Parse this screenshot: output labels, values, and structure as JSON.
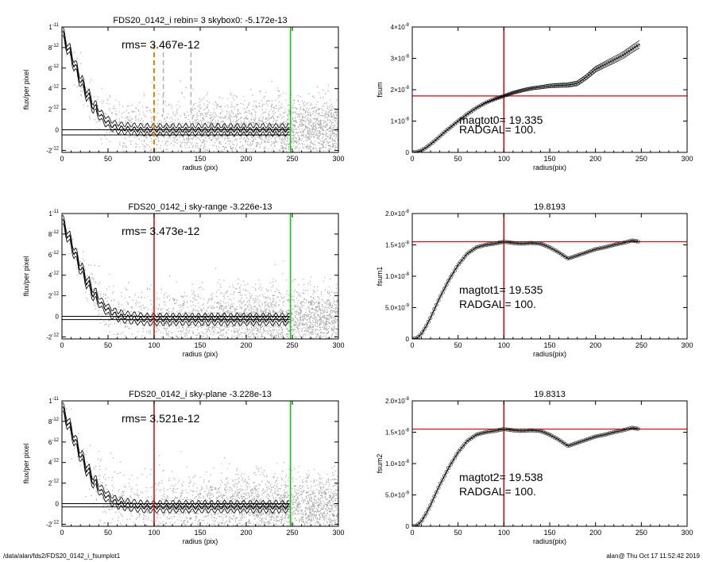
{
  "footer": {
    "left": "/data/alan/fds2/FDS20_0142_i_fsumplot1",
    "right": "alan@  Thu Oct 17 11:52:42 2019"
  },
  "colors": {
    "vline_mid": "#e00000",
    "vline_mid_top": "#f08000",
    "vline_edge": "#00cc00",
    "hline": "#cc0000",
    "scatter": "#a8a8a8",
    "profile": "#000000"
  },
  "chart_data": [
    {
      "type": "scatter",
      "panel": "left-1",
      "title": "FDS20_0142_i rebin= 3    skybox0: -5.172e-13",
      "annotation": "rms= 3.467e-12",
      "xlabel": "radius (pix)",
      "ylabel": "flux/per pixel",
      "xlim": [
        0,
        300
      ],
      "ylim": [
        -2.2e-12,
        1e-11
      ],
      "xticks": [
        "0",
        "50",
        "100",
        "150",
        "200",
        "250",
        "300"
      ],
      "yticks": [
        {
          "v": -2e-12,
          "m": "-2",
          "e": "-12"
        },
        {
          "v": 0,
          "m": "0",
          "e": ""
        },
        {
          "v": 2e-12,
          "m": "2",
          "e": "-12"
        },
        {
          "v": 4e-12,
          "m": "4",
          "e": "-12"
        },
        {
          "v": 6e-12,
          "m": "6",
          "e": "-12"
        },
        {
          "v": 8e-12,
          "m": "8",
          "e": "-12"
        },
        {
          "v": 1e-11,
          "m": "1",
          "e": "-11"
        }
      ],
      "vlines": [
        {
          "x": 100,
          "style": "dashed-orange"
        },
        {
          "x": 110,
          "style": "dashed-gray"
        },
        {
          "x": 140,
          "style": "dashed-gray"
        },
        {
          "x": 248,
          "style": "green"
        }
      ],
      "hlines": [
        0,
        -5e-13
      ],
      "profile_x": [
        0,
        5,
        10,
        15,
        20,
        25,
        30,
        35,
        40,
        45,
        50,
        55,
        60,
        70,
        80,
        90,
        100,
        120,
        140,
        160,
        180,
        200,
        220,
        248
      ],
      "profile_y": [
        9.5e-12,
        8.3e-12,
        7.2e-12,
        6e-12,
        4.9e-12,
        3.9e-12,
        3e-12,
        2.2e-12,
        1.6e-12,
        1.1e-12,
        7e-13,
        4e-13,
        2e-13,
        1e-13,
        5e-14,
        0,
        0,
        0,
        0,
        0,
        0,
        0,
        0,
        0
      ]
    },
    {
      "type": "line",
      "panel": "right-1",
      "title": "",
      "xlabel": "radius(pix)",
      "ylabel": "fsum",
      "xlim": [
        0,
        300
      ],
      "ylim": [
        0,
        4e-08
      ],
      "xticks": [
        "0",
        "50",
        "100",
        "150",
        "200",
        "250",
        "300"
      ],
      "yticks": [
        {
          "v": 0,
          "m": "0",
          "e": ""
        },
        {
          "v": 1e-08,
          "m": "1×10",
          "e": "-8"
        },
        {
          "v": 2e-08,
          "m": "2×10",
          "e": "-8"
        },
        {
          "v": 3e-08,
          "m": "3×10",
          "e": "-8"
        },
        {
          "v": 4e-08,
          "m": "4×10",
          "e": "-8"
        }
      ],
      "vline_x": 100,
      "hline_y": 1.8e-08,
      "annotations": [
        "magtot0=  19.335",
        "RADGAL=    100."
      ],
      "x": [
        0,
        5,
        10,
        15,
        20,
        25,
        30,
        35,
        40,
        50,
        60,
        70,
        80,
        90,
        100,
        110,
        120,
        130,
        140,
        150,
        160,
        170,
        180,
        190,
        200,
        210,
        220,
        230,
        240,
        248
      ],
      "y": [
        0,
        1e-10,
        6e-10,
        1.5e-09,
        2.6e-09,
        3.8e-09,
        5.1e-09,
        6.4e-09,
        7.6e-09,
        1e-08,
        1.22e-08,
        1.42e-08,
        1.58e-08,
        1.7e-08,
        1.8e-08,
        1.9e-08,
        1.98e-08,
        2.04e-08,
        2.08e-08,
        2.12e-08,
        2.14e-08,
        2.15e-08,
        2.2e-08,
        2.4e-08,
        2.65e-08,
        2.8e-08,
        2.95e-08,
        3.1e-08,
        3.3e-08,
        3.45e-08
      ]
    },
    {
      "type": "scatter",
      "panel": "left-2",
      "title": "FDS20_0142_i sky-range -3.226e-13",
      "annotation": "rms= 3.473e-12",
      "xlabel": "radius (pix)",
      "ylabel": "flux/per pixel",
      "xlim": [
        0,
        300
      ],
      "ylim": [
        -2.2e-12,
        1e-11
      ],
      "xticks": [
        "0",
        "50",
        "100",
        "150",
        "200",
        "250",
        "300"
      ],
      "yticks": [
        {
          "v": -2e-12,
          "m": "-2",
          "e": "-12"
        },
        {
          "v": 0,
          "m": "0",
          "e": ""
        },
        {
          "v": 2e-12,
          "m": "2",
          "e": "-12"
        },
        {
          "v": 4e-12,
          "m": "4",
          "e": "-12"
        },
        {
          "v": 6e-12,
          "m": "6",
          "e": "-12"
        },
        {
          "v": 8e-12,
          "m": "8",
          "e": "-12"
        },
        {
          "v": 1e-11,
          "m": "1",
          "e": "-11"
        }
      ],
      "vlines": [
        {
          "x": 100,
          "style": "red"
        },
        {
          "x": 248,
          "style": "green"
        }
      ],
      "hlines": [
        0,
        -3.2e-13
      ],
      "profile_x": [
        0,
        5,
        10,
        15,
        20,
        25,
        30,
        35,
        40,
        45,
        50,
        55,
        60,
        70,
        80,
        90,
        100,
        120,
        140,
        160,
        180,
        200,
        220,
        248
      ],
      "profile_y": [
        9.3e-12,
        8.2e-12,
        7.1e-12,
        5.9e-12,
        4.8e-12,
        3.8e-12,
        2.9e-12,
        2.1e-12,
        1.5e-12,
        1e-12,
        6e-13,
        3e-13,
        1e-13,
        -1e-13,
        -2e-13,
        -3e-13,
        -3e-13,
        -3e-13,
        -3e-13,
        -3e-13,
        -3e-13,
        -3e-13,
        -3e-13,
        -3e-13
      ]
    },
    {
      "type": "line",
      "panel": "right-2",
      "title": "19.8193",
      "xlabel": "radius(pix)",
      "ylabel": "fsum1",
      "xlim": [
        0,
        300
      ],
      "ylim": [
        0,
        2e-08
      ],
      "xticks": [
        "0",
        "50",
        "100",
        "150",
        "200",
        "250",
        "300"
      ],
      "yticks": [
        {
          "v": 0,
          "m": "0",
          "e": ""
        },
        {
          "v": 5e-09,
          "m": "5.0×10",
          "e": "-9"
        },
        {
          "v": 1e-08,
          "m": "1.0×10",
          "e": "-8"
        },
        {
          "v": 1.5e-08,
          "m": "1.5×10",
          "e": "-8"
        },
        {
          "v": 2e-08,
          "m": "2.0×10",
          "e": "-8"
        }
      ],
      "vline_x": 100,
      "hline_y": 1.55e-08,
      "annotations": [
        "magtot1=  19.535",
        "RADGAL=    100."
      ],
      "x": [
        0,
        5,
        10,
        15,
        20,
        25,
        30,
        35,
        40,
        50,
        60,
        70,
        80,
        90,
        100,
        110,
        120,
        130,
        140,
        150,
        160,
        170,
        180,
        190,
        200,
        210,
        220,
        230,
        240,
        248
      ],
      "y": [
        0,
        1e-10,
        8e-10,
        2e-09,
        3.4e-09,
        5e-09,
        6.6e-09,
        8e-09,
        9.4e-09,
        1.18e-08,
        1.36e-08,
        1.46e-08,
        1.5e-08,
        1.52e-08,
        1.55e-08,
        1.53e-08,
        1.52e-08,
        1.53e-08,
        1.52e-08,
        1.46e-08,
        1.38e-08,
        1.28e-08,
        1.33e-08,
        1.38e-08,
        1.43e-08,
        1.46e-08,
        1.5e-08,
        1.53e-08,
        1.57e-08,
        1.55e-08
      ]
    },
    {
      "type": "scatter",
      "panel": "left-3",
      "title": "FDS20_0142_i sky-plane -3.228e-13",
      "annotation": "rms= 3.521e-12",
      "xlabel": "radius (pix)",
      "ylabel": "flux/per pixel",
      "xlim": [
        0,
        300
      ],
      "ylim": [
        -2.2e-12,
        1e-11
      ],
      "xticks": [
        "0",
        "50",
        "100",
        "150",
        "200",
        "250",
        "300"
      ],
      "yticks": [
        {
          "v": -2e-12,
          "m": "-2",
          "e": "-12"
        },
        {
          "v": 0,
          "m": "0",
          "e": ""
        },
        {
          "v": 2e-12,
          "m": "2",
          "e": "-12"
        },
        {
          "v": 4e-12,
          "m": "4",
          "e": "-12"
        },
        {
          "v": 6e-12,
          "m": "6",
          "e": "-12"
        },
        {
          "v": 8e-12,
          "m": "8",
          "e": "-12"
        },
        {
          "v": 1e-11,
          "m": "1",
          "e": "-11"
        }
      ],
      "vlines": [
        {
          "x": 100,
          "style": "red"
        },
        {
          "x": 248,
          "style": "green"
        }
      ],
      "hlines": [
        0,
        -3.2e-13
      ],
      "profile_x": [
        0,
        5,
        10,
        15,
        20,
        25,
        30,
        35,
        40,
        45,
        50,
        55,
        60,
        70,
        80,
        90,
        100,
        120,
        140,
        160,
        180,
        200,
        220,
        248
      ],
      "profile_y": [
        9.3e-12,
        8.2e-12,
        7.1e-12,
        5.9e-12,
        4.8e-12,
        3.8e-12,
        2.9e-12,
        2.1e-12,
        1.5e-12,
        1e-12,
        6e-13,
        3e-13,
        1e-13,
        -1e-13,
        -2e-13,
        -3e-13,
        -3e-13,
        -3e-13,
        -3e-13,
        -3e-13,
        -3e-13,
        -3e-13,
        -3e-13,
        -3e-13
      ]
    },
    {
      "type": "line",
      "panel": "right-3",
      "title": "19.8313",
      "xlabel": "radius(pix)",
      "ylabel": "fsum2",
      "xlim": [
        0,
        300
      ],
      "ylim": [
        0,
        2e-08
      ],
      "xticks": [
        "0",
        "50",
        "100",
        "150",
        "200",
        "250",
        "300"
      ],
      "yticks": [
        {
          "v": 0,
          "m": "0",
          "e": ""
        },
        {
          "v": 5e-09,
          "m": "5.0×10",
          "e": "-9"
        },
        {
          "v": 1e-08,
          "m": "1.0×10",
          "e": "-8"
        },
        {
          "v": 1.5e-08,
          "m": "1.5×10",
          "e": "-8"
        },
        {
          "v": 2e-08,
          "m": "2.0×10",
          "e": "-8"
        }
      ],
      "vline_x": 100,
      "hline_y": 1.55e-08,
      "annotations": [
        "magtot2=  19.538",
        "RADGAL=    100."
      ],
      "x": [
        0,
        5,
        10,
        15,
        20,
        25,
        30,
        35,
        40,
        50,
        60,
        70,
        80,
        90,
        100,
        110,
        120,
        130,
        140,
        150,
        160,
        170,
        180,
        190,
        200,
        210,
        220,
        230,
        240,
        248
      ],
      "y": [
        0,
        1e-10,
        8e-10,
        2e-09,
        3.4e-09,
        5e-09,
        6.6e-09,
        8e-09,
        9.4e-09,
        1.18e-08,
        1.36e-08,
        1.46e-08,
        1.5e-08,
        1.52e-08,
        1.55e-08,
        1.53e-08,
        1.52e-08,
        1.53e-08,
        1.52e-08,
        1.46e-08,
        1.38e-08,
        1.28e-08,
        1.33e-08,
        1.38e-08,
        1.43e-08,
        1.46e-08,
        1.5e-08,
        1.53e-08,
        1.57e-08,
        1.55e-08
      ]
    }
  ]
}
